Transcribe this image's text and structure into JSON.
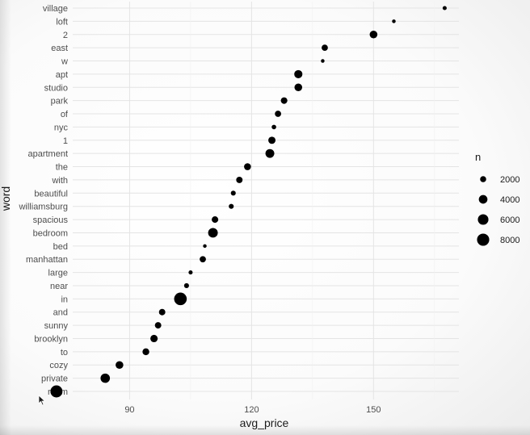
{
  "chart_data": {
    "type": "scatter",
    "xlabel": "avg_price",
    "ylabel": "word",
    "xlim": [
      76,
      171
    ],
    "x_ticks": [
      "90",
      "120",
      "150"
    ],
    "x_tick_values": [
      90,
      120,
      150
    ],
    "grid": true,
    "legend_position": "right",
    "size_legend": {
      "title": "n",
      "entries": [
        {
          "label": "2000",
          "value": 2000
        },
        {
          "label": "4000",
          "value": 4000
        },
        {
          "label": "6000",
          "value": 6000
        },
        {
          "label": "8000",
          "value": 8000
        }
      ]
    },
    "points": [
      {
        "word": "room",
        "avg_price": 72,
        "n": 7800
      },
      {
        "word": "private",
        "avg_price": 84,
        "n": 4700
      },
      {
        "word": "cozy",
        "avg_price": 87.5,
        "n": 3200
      },
      {
        "word": "to",
        "avg_price": 94,
        "n": 2500
      },
      {
        "word": "brooklyn",
        "avg_price": 96,
        "n": 2900
      },
      {
        "word": "sunny",
        "avg_price": 97,
        "n": 2200
      },
      {
        "word": "and",
        "avg_price": 98,
        "n": 2200
      },
      {
        "word": "in",
        "avg_price": 102.5,
        "n": 8500
      },
      {
        "word": "near",
        "avg_price": 104,
        "n": 1300
      },
      {
        "word": "large",
        "avg_price": 105,
        "n": 900
      },
      {
        "word": "manhattan",
        "avg_price": 108,
        "n": 2100
      },
      {
        "word": "bed",
        "avg_price": 108.5,
        "n": 700
      },
      {
        "word": "bedroom",
        "avg_price": 110.5,
        "n": 5000
      },
      {
        "word": "spacious",
        "avg_price": 111,
        "n": 2300
      },
      {
        "word": "williamsburg",
        "avg_price": 115,
        "n": 1300
      },
      {
        "word": "beautiful",
        "avg_price": 115.5,
        "n": 1300
      },
      {
        "word": "with",
        "avg_price": 117,
        "n": 2200
      },
      {
        "word": "the",
        "avg_price": 119,
        "n": 2600
      },
      {
        "word": "apartment",
        "avg_price": 124.5,
        "n": 4200
      },
      {
        "word": "1",
        "avg_price": 125,
        "n": 2800
      },
      {
        "word": "nyc",
        "avg_price": 125.5,
        "n": 1100
      },
      {
        "word": "of",
        "avg_price": 126.5,
        "n": 2100
      },
      {
        "word": "park",
        "avg_price": 128,
        "n": 2300
      },
      {
        "word": "studio",
        "avg_price": 131.5,
        "n": 3200
      },
      {
        "word": "apt",
        "avg_price": 131.5,
        "n": 3600
      },
      {
        "word": "w",
        "avg_price": 137.5,
        "n": 700
      },
      {
        "word": "east",
        "avg_price": 138,
        "n": 2100
      },
      {
        "word": "2",
        "avg_price": 150,
        "n": 3200
      },
      {
        "word": "loft",
        "avg_price": 155,
        "n": 700
      },
      {
        "word": "village",
        "avg_price": 167.5,
        "n": 900
      }
    ]
  }
}
